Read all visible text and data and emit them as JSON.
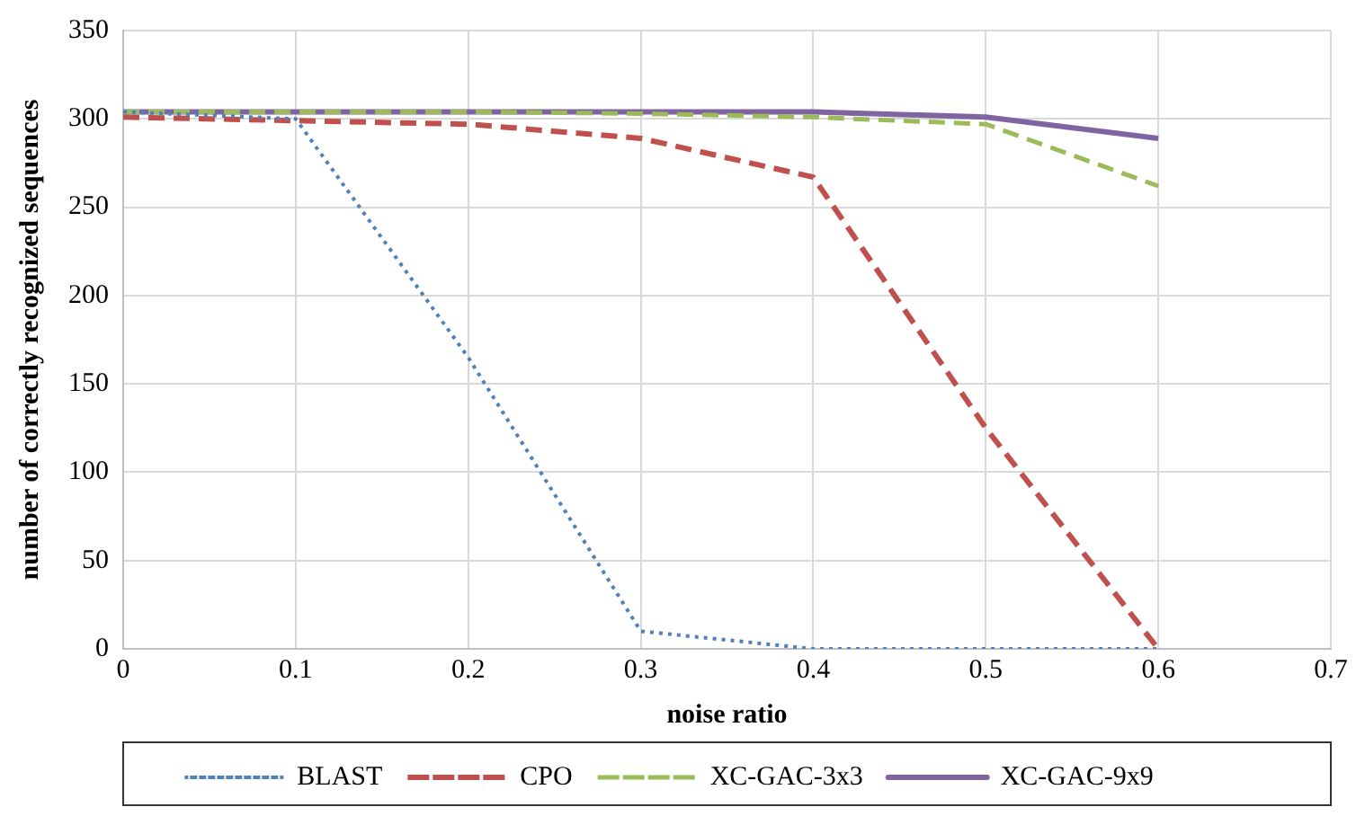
{
  "chart_data": {
    "type": "line",
    "xlabel": "noise ratio",
    "ylabel": "number of correctly recognized sequences",
    "x": [
      0,
      0.1,
      0.2,
      0.3,
      0.4,
      0.5,
      0.6
    ],
    "series": [
      {
        "name": "BLAST",
        "color": "#4f81bd",
        "line_style": "dotted",
        "values": [
          304,
          300,
          165,
          10,
          0,
          0,
          0
        ]
      },
      {
        "name": "CPO",
        "color": "#c0504d",
        "line_style": "dashed",
        "values": [
          301,
          299,
          297,
          289,
          267,
          125,
          0
        ]
      },
      {
        "name": "XC-GAC-3x3",
        "color": "#9bbb59",
        "line_style": "dashed",
        "values": [
          304,
          304,
          304,
          303,
          301,
          297,
          262
        ]
      },
      {
        "name": "XC-GAC-9x9",
        "color": "#8064a2",
        "line_style": "solid",
        "values": [
          304,
          304,
          304,
          304,
          304,
          301,
          289
        ]
      }
    ],
    "xlim": [
      0,
      0.7
    ],
    "xticks": [
      0,
      0.1,
      0.2,
      0.3,
      0.4,
      0.5,
      0.6,
      0.7
    ],
    "ylim": [
      0,
      350
    ],
    "yticks": [
      0,
      50,
      100,
      150,
      200,
      250,
      300,
      350
    ],
    "grid": true,
    "legend": "bottom",
    "marker": "none"
  }
}
